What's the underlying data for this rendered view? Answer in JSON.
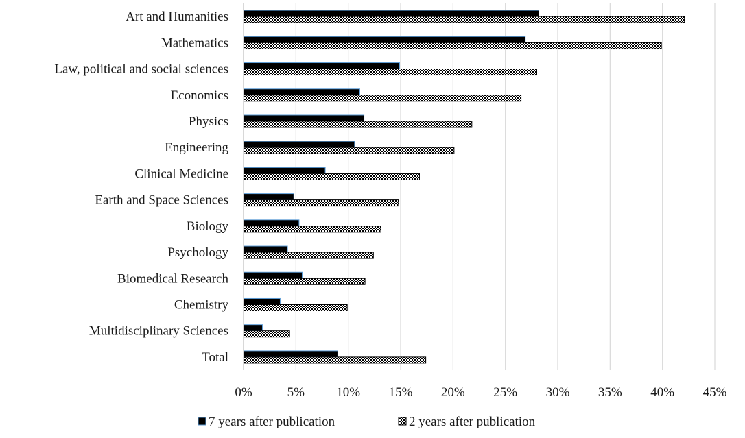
{
  "chart_data": {
    "type": "bar",
    "orientation": "horizontal",
    "categories": [
      "Art and Humanities",
      "Mathematics",
      "Law, political and social sciences",
      "Economics",
      "Physics",
      "Engineering",
      "Clinical Medicine",
      "Earth and Space Sciences",
      "Biology",
      "Psychology",
      "Biomedical Research",
      "Chemistry",
      "Multidisciplinary Sciences",
      "Total"
    ],
    "series": [
      {
        "name": "7 years after publication",
        "values": [
          28.2,
          26.9,
          14.9,
          11.1,
          11.5,
          10.6,
          7.8,
          4.8,
          5.3,
          4.2,
          5.6,
          3.5,
          1.8,
          9.0
        ],
        "fill": "#000000",
        "stroke": "#5b9bd5"
      },
      {
        "name": "2 years after publication",
        "values": [
          42.1,
          39.9,
          28.0,
          26.5,
          21.8,
          20.1,
          16.8,
          14.8,
          13.1,
          12.4,
          11.6,
          9.9,
          4.4,
          17.4
        ],
        "fill": "pattern",
        "stroke": "#000000"
      }
    ],
    "x_ticks": [
      "0%",
      "5%",
      "10%",
      "15%",
      "20%",
      "25%",
      "30%",
      "35%",
      "40%",
      "45%"
    ],
    "xlim": [
      0,
      45
    ],
    "value_unit": "%",
    "grid": true,
    "legend_position": "bottom",
    "title": "",
    "xlabel": "",
    "ylabel": ""
  }
}
